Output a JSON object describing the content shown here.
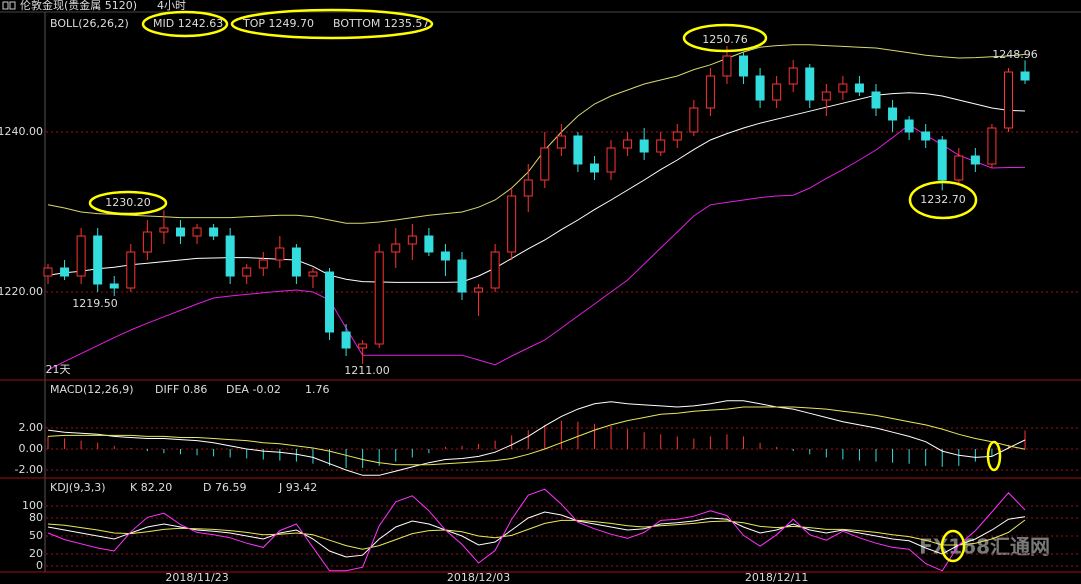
{
  "header": {
    "title": "伦敦金现(贵金属 5120)",
    "period": "4小时"
  },
  "watermark": "FX168汇通网",
  "chart_data": [
    {
      "type": "candlestick",
      "indicator": "BOLL(26,26,2)",
      "readouts": [
        {
          "text": "MID 1242.63",
          "color": "#ffffff"
        },
        {
          "text": "TOP 1249.70",
          "color": "#e8e85a"
        },
        {
          "text": "BOTTOM 1235.57",
          "color": "#ff33ff"
        }
      ],
      "ylim": [
        1209,
        1255
      ],
      "yticks": [
        {
          "value": 1240,
          "label": "1240.00"
        },
        {
          "value": 1220,
          "label": "1220.00"
        }
      ],
      "grid": true,
      "up_color": "#ff3333",
      "down_color": "#33dddd",
      "open": [
        1222,
        1223,
        1222,
        1227,
        1221,
        1220.5,
        1225,
        1227.5,
        1228,
        1227,
        1228,
        1227,
        1222,
        1223,
        1224,
        1225.5,
        1222,
        1222.5,
        1215,
        1213,
        1213.5,
        1225,
        1226,
        1227,
        1225,
        1224,
        1220,
        1220.5,
        1225,
        1232,
        1234,
        1238,
        1239.5,
        1236,
        1235,
        1238,
        1239,
        1237.5,
        1239,
        1240,
        1243,
        1247,
        1249.5,
        1247,
        1244,
        1246,
        1248,
        1244,
        1245,
        1246,
        1245,
        1243,
        1241.5,
        1240,
        1239,
        1234,
        1237,
        1236,
        1240.5,
        1247.5
      ],
      "high": [
        1223.5,
        1224,
        1228,
        1228,
        1222,
        1226,
        1229,
        1230.2,
        1229,
        1228.5,
        1228.5,
        1228,
        1223.5,
        1225,
        1227,
        1226,
        1223,
        1223,
        1216,
        1214,
        1226,
        1228,
        1228.5,
        1228,
        1226,
        1225,
        1221,
        1226,
        1233,
        1236,
        1240,
        1241,
        1240,
        1237,
        1239,
        1240,
        1240.5,
        1240,
        1241,
        1244,
        1248,
        1250.76,
        1250,
        1248,
        1247,
        1249,
        1248.5,
        1246,
        1247,
        1247,
        1246,
        1244,
        1242,
        1241,
        1239.5,
        1238,
        1238,
        1241,
        1248,
        1248.96
      ],
      "low": [
        1221,
        1221.5,
        1221,
        1220,
        1219.5,
        1220,
        1224,
        1226,
        1226,
        1226,
        1226.5,
        1221,
        1221,
        1222,
        1223,
        1221,
        1220.5,
        1214,
        1212,
        1211,
        1213,
        1223,
        1224,
        1224.5,
        1222,
        1219,
        1217,
        1220,
        1224,
        1230,
        1233,
        1237,
        1235,
        1234,
        1234,
        1237,
        1236.5,
        1237,
        1238,
        1239.5,
        1242,
        1246,
        1246,
        1243,
        1243,
        1245,
        1243,
        1242,
        1244,
        1244.5,
        1242,
        1240,
        1239,
        1238,
        1232.7,
        1233.5,
        1235,
        1235.5,
        1240,
        1246
      ],
      "close": [
        1223,
        1222,
        1227,
        1221,
        1220.5,
        1225,
        1227.5,
        1228,
        1227,
        1228,
        1227,
        1222,
        1223,
        1224,
        1225.5,
        1222,
        1222.5,
        1215,
        1213,
        1213.5,
        1225,
        1226,
        1227,
        1225,
        1224,
        1220,
        1220.5,
        1225,
        1232,
        1234,
        1238,
        1239.5,
        1236,
        1235,
        1238,
        1239,
        1237.5,
        1239,
        1240,
        1243,
        1247,
        1249.5,
        1247,
        1244,
        1246,
        1248,
        1244,
        1245,
        1246,
        1245,
        1243,
        1241.5,
        1240,
        1239,
        1234,
        1237,
        1236,
        1240.5,
        1247.5,
        1246.5
      ],
      "bands": [
        {
          "color": "#d8d870",
          "values": [
            1230.9,
            1230.5,
            1230.0,
            1229.8,
            1229.7,
            1229.6,
            1229.5,
            1229.4,
            1229.3,
            1229.3,
            1229.3,
            1229.3,
            1229.4,
            1229.5,
            1229.6,
            1229.6,
            1229.4,
            1229.0,
            1228.6,
            1228.6,
            1228.75,
            1229.0,
            1229.3,
            1229.6,
            1229.8,
            1230.0,
            1230.6,
            1231.5,
            1233.0,
            1235.0,
            1237.75,
            1240.0,
            1242.0,
            1243.5,
            1244.5,
            1245.25,
            1246.0,
            1246.5,
            1247.0,
            1247.8,
            1248.4,
            1249.2,
            1250.0,
            1250.6,
            1250.8,
            1250.9,
            1250.9,
            1250.8,
            1250.7,
            1250.6,
            1250.5,
            1250.2,
            1249.9,
            1249.6,
            1249.4,
            1249.25,
            1249.3,
            1249.4,
            1249.5,
            1249.7
          ]
        },
        {
          "color": "#ffffff",
          "values": [
            1222.1,
            1222.4,
            1222.6,
            1222.9,
            1223.1,
            1223.4,
            1223.6,
            1223.8,
            1224.0,
            1224.2,
            1224.25,
            1224.3,
            1224.3,
            1224.2,
            1224.1,
            1224.0,
            1223.2,
            1222.1,
            1221.6,
            1221.3,
            1221.25,
            1221.2,
            1221.2,
            1221.2,
            1221.2,
            1221.25,
            1222.0,
            1223.0,
            1224.2,
            1225.4,
            1226.5,
            1227.8,
            1229.0,
            1230.3,
            1231.5,
            1232.75,
            1234.0,
            1235.3,
            1236.5,
            1237.8,
            1239.0,
            1239.8,
            1240.5,
            1241.1,
            1241.6,
            1242.1,
            1242.6,
            1243.1,
            1243.6,
            1244.1,
            1244.6,
            1244.8,
            1244.9,
            1244.8,
            1244.5,
            1244.0,
            1243.5,
            1243.0,
            1242.7,
            1242.63
          ]
        },
        {
          "color": "#e020e0",
          "values": [
            1210.25,
            1211.3,
            1212.3,
            1213.3,
            1214.3,
            1215.25,
            1216.1,
            1216.9,
            1217.7,
            1218.5,
            1219.25,
            1219.5,
            1219.7,
            1219.9,
            1220.1,
            1220.25,
            1220.0,
            1219.0,
            1215.5,
            1212.1,
            1212.1,
            1212.1,
            1212.1,
            1212.1,
            1212.1,
            1212.1,
            1211.5,
            1210.9,
            1212.0,
            1213.0,
            1214.0,
            1215.5,
            1217.0,
            1218.5,
            1220.0,
            1221.5,
            1223.5,
            1225.5,
            1227.5,
            1229.5,
            1230.9,
            1231.2,
            1231.5,
            1231.8,
            1232.0,
            1232.1,
            1233.0,
            1234.2,
            1235.3,
            1236.5,
            1237.75,
            1239.3,
            1240.9,
            1239.6,
            1238.4,
            1237.1,
            1236.3,
            1235.5,
            1235.56,
            1235.57
          ]
        }
      ],
      "annotations": [
        {
          "text": "1230.20",
          "color": "#ff4444"
        },
        {
          "text": "1219.50",
          "color": "#33dddd"
        },
        {
          "text": "1211.00",
          "color": "#33dddd"
        },
        {
          "text": "1250.76",
          "color": "#ff4444"
        },
        {
          "text": "1248.96",
          "color": "#ff4444"
        },
        {
          "text": "1232.70",
          "color": "#33dddd"
        },
        {
          "text": "21天",
          "color": "#e8e85a"
        }
      ]
    },
    {
      "type": "macd",
      "indicator": "MACD(12,26,9)",
      "readouts": [
        {
          "text": "DIFF 0.86",
          "color": "#ffffff"
        },
        {
          "text": "DEA -0.02",
          "color": "#e8e85a"
        },
        {
          "text": "1.76",
          "color": "#ffffff"
        }
      ],
      "ylim": [
        -2.76,
        6.57
      ],
      "yticks": [
        {
          "value": 2,
          "label": "2.00"
        },
        {
          "value": 0,
          "label": "0.00"
        },
        {
          "value": -2,
          "label": "-2.00"
        }
      ],
      "grid": true,
      "up_color": "#ff3333",
      "down_color": "#33dddd",
      "hist": [
        1.2,
        1.0,
        0.8,
        0.6,
        0.3,
        0.1,
        -0.2,
        -0.4,
        -0.5,
        -0.6,
        -0.7,
        -0.8,
        -0.9,
        -1.0,
        -1.1,
        -1.2,
        -1.4,
        -1.6,
        -1.8,
        -1.8,
        -1.6,
        -1.2,
        -0.8,
        -0.4,
        0.2,
        0.3,
        0.5,
        0.8,
        1.3,
        1.8,
        2.3,
        2.7,
        2.6,
        2.4,
        2.2,
        1.9,
        1.6,
        1.4,
        1.2,
        1.0,
        1.2,
        1.4,
        1.2,
        0.6,
        0.2,
        -0.2,
        -0.5,
        -0.8,
        -1.0,
        -1.1,
        -1.2,
        -1.3,
        -1.4,
        -1.6,
        -1.7,
        -1.6,
        -1.2,
        -0.7,
        0.4,
        1.76
      ],
      "series": [
        {
          "color": "#ffffff",
          "values": [
            1.8,
            1.6,
            1.5,
            1.4,
            1.2,
            1.1,
            1.0,
            1.0,
            0.9,
            0.8,
            0.6,
            0.3,
            0.0,
            -0.2,
            -0.3,
            -0.5,
            -0.8,
            -1.4,
            -2.0,
            -2.5,
            -2.5,
            -2.1,
            -1.7,
            -1.3,
            -1.0,
            -0.9,
            -0.7,
            -0.3,
            0.4,
            1.2,
            2.2,
            3.1,
            3.8,
            4.3,
            4.5,
            4.3,
            4.2,
            4.1,
            4.0,
            4.1,
            4.3,
            4.6,
            4.6,
            4.3,
            4.0,
            3.8,
            3.4,
            3.0,
            2.6,
            2.3,
            2.0,
            1.6,
            1.2,
            0.7,
            -0.2,
            -0.6,
            -0.8,
            -0.7,
            0.1,
            0.86
          ]
        },
        {
          "color": "#e8e85a",
          "values": [
            1.2,
            1.3,
            1.3,
            1.3,
            1.3,
            1.3,
            1.2,
            1.2,
            1.1,
            1.1,
            1.0,
            0.9,
            0.8,
            0.6,
            0.5,
            0.3,
            0.1,
            -0.2,
            -0.6,
            -1.0,
            -1.3,
            -1.5,
            -1.5,
            -1.5,
            -1.4,
            -1.3,
            -1.2,
            -1.1,
            -0.9,
            -0.5,
            0.0,
            0.6,
            1.2,
            1.8,
            2.3,
            2.7,
            3.0,
            3.3,
            3.4,
            3.6,
            3.7,
            3.8,
            4.0,
            4.0,
            4.0,
            4.0,
            3.9,
            3.8,
            3.6,
            3.4,
            3.2,
            2.9,
            2.6,
            2.3,
            1.9,
            1.4,
            1.0,
            0.7,
            0.3,
            -0.02
          ]
        }
      ]
    },
    {
      "type": "kdj",
      "indicator": "KDJ(9,3,3)",
      "readouts": [
        {
          "text": "K 82.20",
          "color": "#ffffff"
        },
        {
          "text": "D 76.59",
          "color": "#e8e85a"
        },
        {
          "text": "J 93.42",
          "color": "#ff33ff"
        }
      ],
      "ylim": [
        -10,
        140
      ],
      "yticks": [
        100,
        80,
        50,
        20,
        0
      ],
      "grid": true,
      "categories": [
        null,
        null,
        null,
        null,
        null,
        null,
        null,
        null,
        null,
        "2018/11/23",
        null,
        null,
        null,
        null,
        null,
        null,
        null,
        null,
        null,
        null,
        null,
        null,
        null,
        null,
        null,
        null,
        "2018/12/03",
        null,
        null,
        null,
        null,
        null,
        null,
        null,
        null,
        null,
        null,
        null,
        null,
        null,
        null,
        null,
        null,
        null,
        "2018/12/11",
        null,
        null,
        null,
        null,
        null,
        null,
        null,
        null,
        null,
        null,
        null,
        null,
        null,
        null,
        null
      ],
      "series": [
        {
          "color": "#ffffff",
          "values": [
            65,
            60,
            55,
            50,
            45,
            55,
            65,
            70,
            65,
            60,
            58,
            55,
            50,
            45,
            55,
            60,
            45,
            25,
            15,
            18,
            45,
            65,
            75,
            70,
            60,
            50,
            35,
            40,
            60,
            80,
            90,
            85,
            75,
            70,
            65,
            60,
            62,
            70,
            72,
            75,
            80,
            78,
            65,
            55,
            60,
            70,
            60,
            55,
            60,
            55,
            50,
            45,
            42,
            30,
            20,
            35,
            45,
            60,
            78,
            82.2
          ]
        },
        {
          "color": "#e8e85a",
          "values": [
            70,
            68,
            64,
            60,
            55,
            54,
            57,
            61,
            63,
            62,
            61,
            59,
            56,
            52,
            53,
            55,
            52,
            43,
            34,
            28,
            34,
            44,
            54,
            59,
            60,
            57,
            50,
            47,
            51,
            61,
            71,
            76,
            76,
            74,
            71,
            67,
            65,
            67,
            69,
            71,
            74,
            75,
            72,
            66,
            64,
            66,
            64,
            61,
            61,
            59,
            56,
            52,
            49,
            43,
            35,
            35,
            38,
            45,
            56,
            76.59
          ]
        },
        {
          "color": "#ff33ff",
          "values": [
            55,
            44,
            37,
            30,
            25,
            57,
            81,
            88,
            69,
            56,
            52,
            47,
            38,
            31,
            59,
            70,
            31,
            -8,
            -8,
            -2,
            67,
            107,
            117,
            92,
            60,
            36,
            5,
            26,
            78,
            118,
            128,
            103,
            73,
            62,
            53,
            46,
            56,
            76,
            78,
            83,
            92,
            84,
            51,
            33,
            52,
            78,
            52,
            43,
            58,
            47,
            38,
            31,
            28,
            4,
            -8,
            35,
            59,
            90,
            122,
            93.42
          ]
        }
      ]
    }
  ]
}
